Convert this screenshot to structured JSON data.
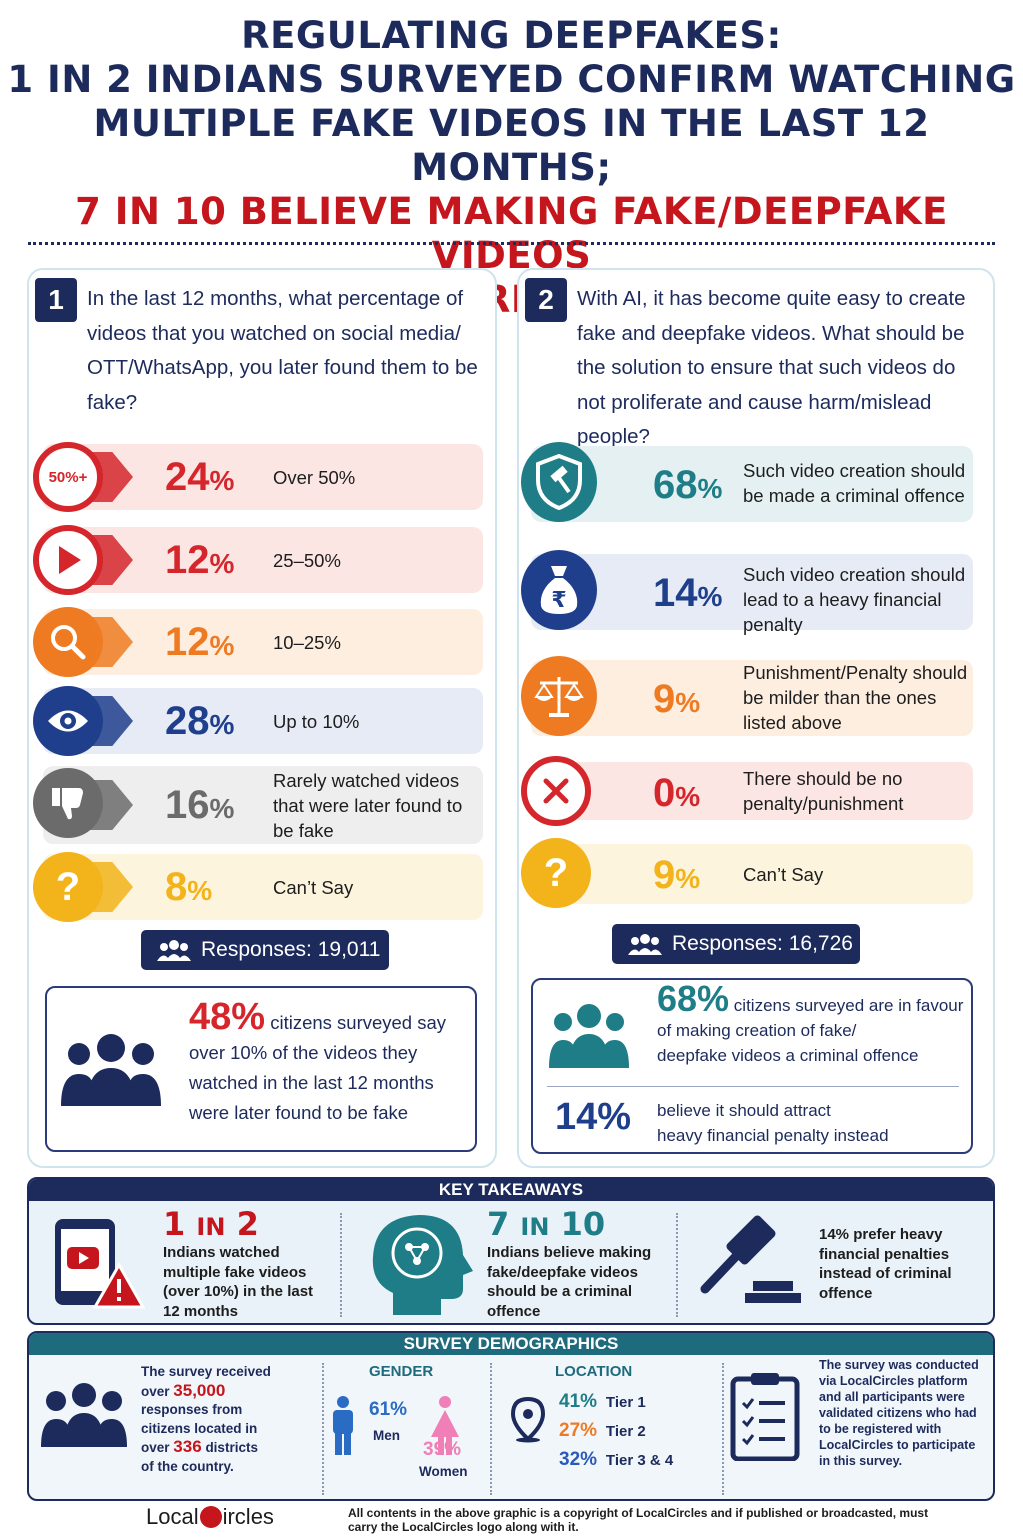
{
  "header": {
    "line1": "REGULATING DEEPFAKES:",
    "line2": "1 IN 2 INDIANS SURVEYED CONFIRM WATCHING",
    "line3": "MULTIPLE FAKE VIDEOS IN THE LAST 12 MONTHS;",
    "line4": "7 IN 10 BELIEVE MAKING FAKE/DEEPFAKE VIDEOS",
    "line5": "SHOULD BE A CRIMINAL OFFENCE"
  },
  "q1": {
    "number": "1",
    "question": "In the last 12 months, what percentage of videos that you watched on social media/ OTT/WhatsApp, you later found them to be fake?",
    "badge_text": "50%+",
    "rows": [
      {
        "pct": "24",
        "label": "Over 50%",
        "icon": "fifty-plus-icon",
        "color": "#d4262b",
        "bg": "#fbe6e4"
      },
      {
        "pct": "12",
        "label": "25–50%",
        "icon": "play-icon",
        "color": "#d4262b",
        "bg": "#fbe6e4"
      },
      {
        "pct": "12",
        "label": "10–25%",
        "icon": "magnifier-icon",
        "color": "#ee7b22",
        "bg": "#fdeee0"
      },
      {
        "pct": "28",
        "label": "Up to 10%",
        "icon": "eye-icon",
        "color": "#1f3f8c",
        "bg": "#e6ebf5"
      },
      {
        "pct": "16",
        "label": "Rarely watched videos that were later found to be fake",
        "icon": "thumbs-down-icon",
        "color": "#6b6b6b",
        "bg": "#eeeeee"
      },
      {
        "pct": "8",
        "label": "Can’t Say",
        "icon": "question-icon",
        "color": "#f2b31b",
        "bg": "#fdf4de"
      }
    ],
    "responses": "Responses: 19,011",
    "summary_pct": "48%",
    "summary_text": "citizens surveyed say over 10% of the videos they watched in the last 12 months were later found to be fake",
    "summary_text_a": "citizens surveyed say",
    "summary_text_b": "over 10% of the videos they",
    "summary_text_c": "watched in the last 12 months",
    "summary_text_d": "were later found to be fake"
  },
  "q2": {
    "number": "2",
    "question": "With AI, it has become quite easy to create fake and deepfake videos. What should be the solution to ensure that such videos do not proliferate and cause harm/mislead people?",
    "rupee": "₹",
    "rows": [
      {
        "pct": "68",
        "label": "Such video creation should be made a criminal offence",
        "icon": "shield-gavel-icon",
        "color": "#1e7d86",
        "bg": "#e4f0f1"
      },
      {
        "pct": "14",
        "label": "Such video creation should lead to a heavy financial penalty",
        "icon": "money-bag-icon",
        "color": "#1f3f8c",
        "bg": "#e6ebf5"
      },
      {
        "pct": "9",
        "label": "Punishment/Penalty should be milder than the ones listed above",
        "icon": "scales-icon",
        "color": "#ee7b22",
        "bg": "#fdeee0"
      },
      {
        "pct": "0",
        "label": "There should be no penalty/punishment",
        "icon": "cross-icon",
        "color": "#d4262b",
        "bg": "#fbe6e4"
      },
      {
        "pct": "9",
        "label": "Can’t Say",
        "icon": "question-icon",
        "color": "#f2b31b",
        "bg": "#fdf4de"
      }
    ],
    "responses": "Responses: 16,726",
    "summary_pct": "68%",
    "summary_text_a": "citizens surveyed are in favour",
    "summary_text_b": "of making creation of fake/",
    "summary_text_c": "deepfake videos a criminal offence",
    "summary2_pct": "14%",
    "summary2_text_a": "believe it should attract",
    "summary2_text_b": "heavy financial penalty instead"
  },
  "key_takeaways": {
    "title": "KEY TAKEAWAYS",
    "items": [
      {
        "big_a": "1",
        "big_in": "IN",
        "big_b": "2",
        "text": "Indians watched multiple fake videos (over 10%) in the last 12 months"
      },
      {
        "big_a": "7",
        "big_in": "IN",
        "big_b": "10",
        "text": "Indians believe making fake/deepfake videos should be a criminal offence"
      },
      {
        "text": "14% prefer heavy financial penalties instead of criminal offence"
      }
    ]
  },
  "demographics": {
    "title": "SURVEY DEMOGRAPHICS",
    "received_a": "The survey received",
    "received_over": "over",
    "received_num": "35,000",
    "received_b": "responses from",
    "received_c": "citizens located in",
    "received_over2": "over",
    "received_num2": "336",
    "received_d": "districts",
    "received_e": "of the country.",
    "gender_title": "GENDER",
    "men_pct": "61%",
    "men_label": "Men",
    "women_pct": "39%",
    "women_label": "Women",
    "location_title": "LOCATION",
    "tiers": [
      {
        "pct": "41%",
        "label": "Tier 1",
        "color": "#1e7d86"
      },
      {
        "pct": "27%",
        "label": "Tier 2",
        "color": "#ee7b22"
      },
      {
        "pct": "32%",
        "label": "Tier 3 & 4",
        "color": "#2a5ab8"
      }
    ],
    "note": "The survey was conducted via LocalCircles platform and all participants were validated citizens who had to be registered with LocalCircles to participate in this survey."
  },
  "footer": {
    "logo_a": "Local",
    "logo_b": "ircles",
    "note": "All contents in the above graphic is a copyright of LocalCircles and if published or broadcasted, must carry the LocalCircles logo along with it."
  }
}
